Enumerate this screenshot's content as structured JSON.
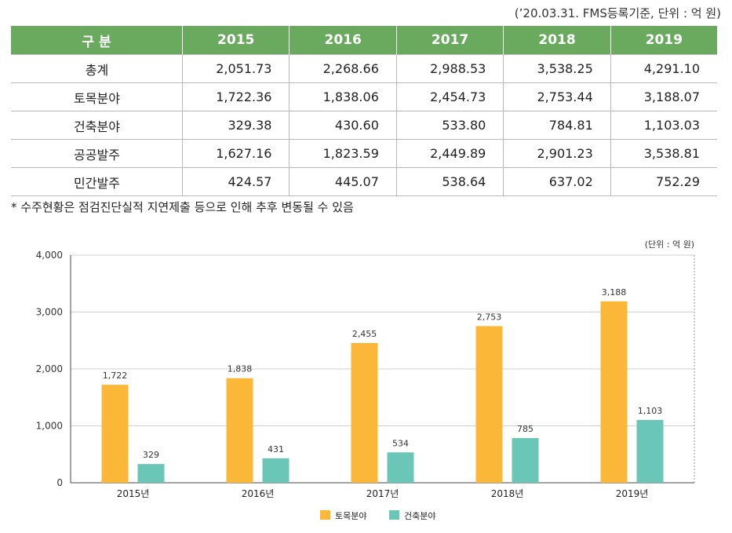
{
  "table": {
    "note": "(’20.03.31. FMS등록기준, 단위 : 억 원)",
    "headers": [
      "구 분",
      "2015",
      "2016",
      "2017",
      "2018",
      "2019"
    ],
    "rows": [
      [
        "총계",
        "2,051.73",
        "2,268.66",
        "2,988.53",
        "3,538.25",
        "4,291.10"
      ],
      [
        "토목분야",
        "1,722.36",
        "1,838.06",
        "2,454.73",
        "2,753.44",
        "3,188.07"
      ],
      [
        "건축분야",
        "329.38",
        "430.60",
        "533.80",
        "784.81",
        "1,103.03"
      ],
      [
        "공공발주",
        "1,627.16",
        "1,823.59",
        "2,449.89",
        "2,901.23",
        "3,538.81"
      ],
      [
        "민간발주",
        "424.57",
        "445.07",
        "538.64",
        "637.02",
        "752.29"
      ]
    ],
    "footnote": "* 수주현황은 점검진단실적 지연제출 등으로 인해 추후 변동될 수 있음"
  },
  "chart_data": {
    "type": "bar",
    "unit_note": "(단위 : 억 원)",
    "categories": [
      "2015년",
      "2016년",
      "2017년",
      "2018년",
      "2019년"
    ],
    "series": [
      {
        "name": "토목분야",
        "color": "#fbb737",
        "values": [
          1722,
          1838,
          2455,
          2753,
          3188
        ],
        "labels": [
          "1,722",
          "1,838",
          "2,455",
          "2,753",
          "3,188"
        ]
      },
      {
        "name": "건축분야",
        "color": "#6ac6b6",
        "values": [
          329,
          431,
          534,
          785,
          1103
        ],
        "labels": [
          "329",
          "431",
          "534",
          "785",
          "1,103"
        ]
      }
    ],
    "ylim": [
      0,
      4000
    ],
    "yticks": [
      0,
      1000,
      2000,
      3000,
      4000
    ],
    "ytick_labels": [
      "0",
      "1,000",
      "2,000",
      "3,000",
      "4,000"
    ],
    "grid": true,
    "legend": "bottom-center"
  }
}
